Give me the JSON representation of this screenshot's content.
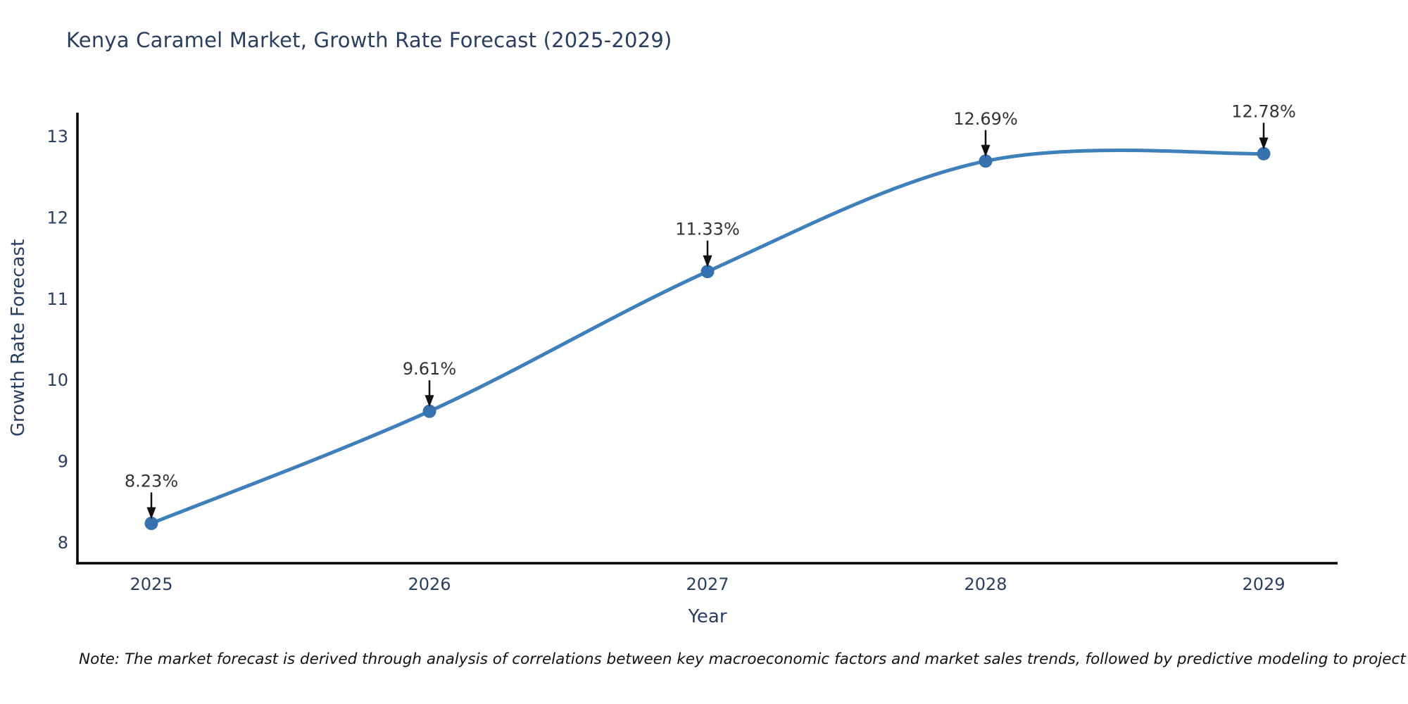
{
  "title": "Kenya Caramel Market, Growth Rate Forecast (2025-2029)",
  "note": "Note: The market forecast is derived through analysis of correlations between key macroeconomic factors and market sales trends, followed by predictive modeling to project future sales",
  "chart_data": {
    "type": "line",
    "title": "Kenya Caramel Market, Growth Rate Forecast (2025-2029)",
    "xlabel": "Year",
    "ylabel": "Growth Rate Forecast",
    "categories": [
      "2025",
      "2026",
      "2027",
      "2028",
      "2029"
    ],
    "values": [
      8.23,
      9.61,
      11.33,
      12.69,
      12.78
    ],
    "point_labels": [
      "8.23%",
      "9.61%",
      "11.33%",
      "12.69%",
      "12.78%"
    ],
    "yticks": [
      8,
      9,
      10,
      11,
      12,
      13
    ],
    "ylim": [
      7.74,
      13.29
    ],
    "line_shape": "spline",
    "grid": false,
    "legend": "none",
    "markers": true,
    "annotation_arrows": true,
    "colors": {
      "line": "#3f7fba",
      "marker": "#3672ae",
      "axis": "#000000",
      "axis_text": "#2a3f5f",
      "annotation_text": "#333333",
      "arrow": "#111111",
      "background": "#ffffff"
    }
  }
}
